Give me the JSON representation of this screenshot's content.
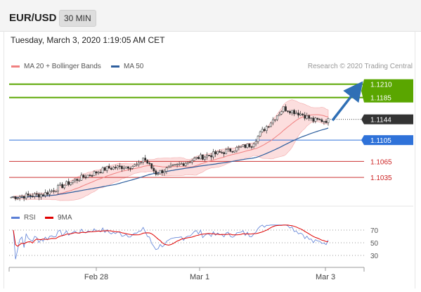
{
  "header": {
    "pair": "EUR/USD",
    "timeframe": "30 MIN"
  },
  "datetime": "Tuesday, March 3, 2020 1:19:05 AM CET",
  "legend": {
    "ma20": {
      "label": "MA 20 + Bollinger Bands",
      "color": "#f08080"
    },
    "ma50": {
      "label": "MA 50",
      "color": "#2e5f9e"
    }
  },
  "credit": "Research © 2020 Trading Central",
  "chart_data": [
    {
      "type": "candlestick",
      "title": "",
      "ylim": [
        1.0985,
        1.1232
      ],
      "x_ticks": [
        "Feb 28",
        "Mar 1",
        "Mar 3"
      ],
      "levels": [
        {
          "value": 1.121,
          "label": "1.1210",
          "kind": "resistance",
          "color": "#5aa600"
        },
        {
          "value": 1.1185,
          "label": "1.1185",
          "kind": "resistance",
          "color": "#5aa600"
        },
        {
          "value": 1.1144,
          "label": "1.1144",
          "kind": "last-price",
          "color": "#333333"
        },
        {
          "value": 1.1105,
          "label": "1.1105",
          "kind": "pivot",
          "color": "#2f72d9"
        },
        {
          "value": 1.1065,
          "label": "1.1065",
          "kind": "support",
          "color": "#cc3333"
        },
        {
          "value": 1.1035,
          "label": "1.1035",
          "kind": "support",
          "color": "#cc3333"
        }
      ],
      "projection": {
        "from": 1.1142,
        "to": 1.121
      }
    },
    {
      "type": "line",
      "title": "",
      "legend": [
        {
          "name": "RSI",
          "color": "#5b7fd6"
        },
        {
          "name": "9MA",
          "color": "#e00000"
        }
      ],
      "y_ticks": [
        70,
        50,
        30
      ],
      "ylim": [
        20,
        80
      ]
    }
  ]
}
